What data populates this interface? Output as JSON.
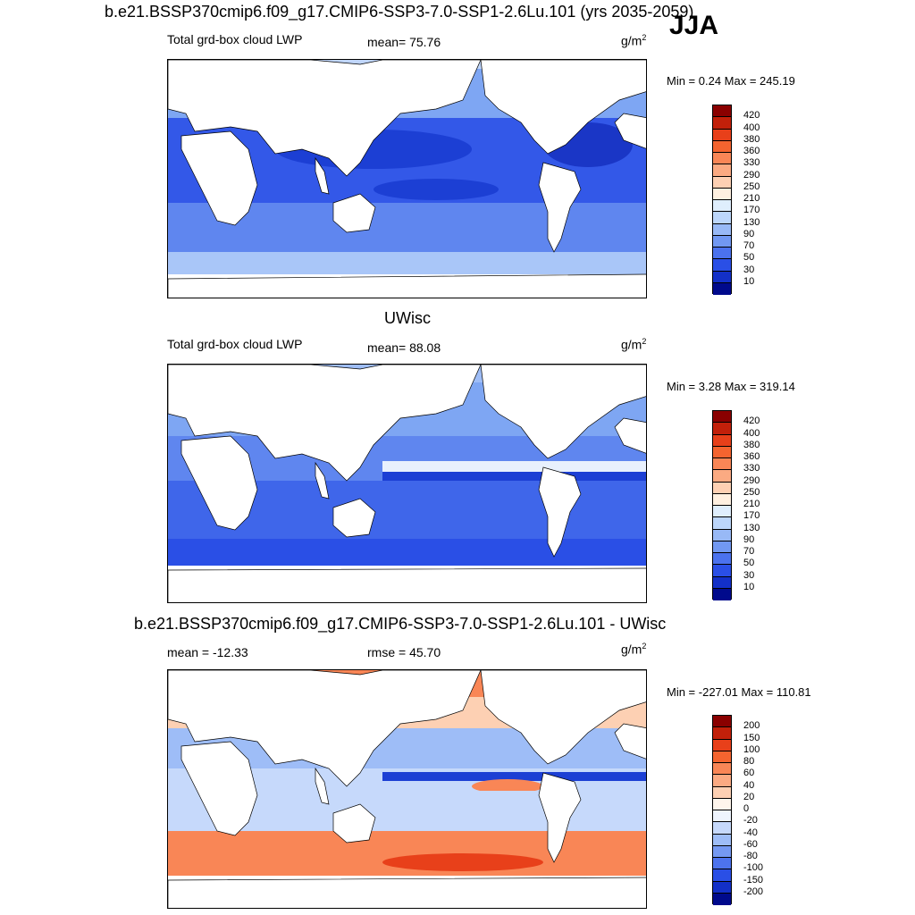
{
  "header": {
    "title": "b.e21.BSSP370cmip6.f09_g17.CMIP6-SSP3-7.0-SSP1-2.6Lu.101 (yrs 2035-2059)",
    "season": "JJA"
  },
  "panels": [
    {
      "id": "p1",
      "heading": "",
      "left_label": "Total grd-box cloud LWP",
      "center_label": "mean=  75.76",
      "unit": "g/m",
      "unit_sup": "2",
      "minmax": "Min =   0.24 Max = 245.19"
    },
    {
      "id": "p2",
      "heading": "UWisc",
      "left_label": "Total grd-box cloud LWP",
      "center_label": "mean=  88.08",
      "unit": "g/m",
      "unit_sup": "2",
      "minmax": "Min =   3.28 Max = 319.14"
    },
    {
      "id": "p3",
      "heading": "b.e21.BSSP370cmip6.f09_g17.CMIP6-SSP3-7.0-SSP1-2.6Lu.101 - UWisc",
      "left_label": "mean = -12.33",
      "center_label": "rmse =  45.70",
      "unit": "g/m",
      "unit_sup": "2",
      "minmax": "Min = -227.01 Max = 110.81"
    }
  ],
  "colorbar_abs": {
    "labels": [
      "420",
      "400",
      "380",
      "360",
      "330",
      "290",
      "250",
      "210",
      "170",
      "130",
      "90",
      "70",
      "50",
      "30",
      "10"
    ],
    "colors": [
      "#8a0000",
      "#c2200a",
      "#e8401a",
      "#f5642f",
      "#f98656",
      "#fbaa82",
      "#fdd0b3",
      "#fff0e0",
      "#dfeefd",
      "#bcd6fb",
      "#98b9f6",
      "#7198f2",
      "#4b72ee",
      "#2a4fe6",
      "#1330c8",
      "#000a8c"
    ]
  },
  "colorbar_diff": {
    "labels": [
      "200",
      "150",
      "100",
      "80",
      "60",
      "40",
      "20",
      "0",
      "-20",
      "-40",
      "-60",
      "-80",
      "-100",
      "-150",
      "-200"
    ],
    "colors": [
      "#8a0000",
      "#c2200a",
      "#e8401a",
      "#f5642f",
      "#f98656",
      "#fbaa82",
      "#fdd0b3",
      "#fff5ec",
      "#eef4fe",
      "#c6d9fb",
      "#9ebdf7",
      "#7599f2",
      "#4d73ee",
      "#2a4fe6",
      "#1330c8",
      "#000a8c"
    ]
  }
}
